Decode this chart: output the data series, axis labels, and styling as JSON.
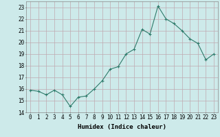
{
  "x": [
    0,
    1,
    2,
    3,
    4,
    5,
    6,
    7,
    8,
    9,
    10,
    11,
    12,
    13,
    14,
    15,
    16,
    17,
    18,
    19,
    20,
    21,
    22,
    23
  ],
  "y": [
    15.9,
    15.8,
    15.5,
    15.9,
    15.5,
    14.5,
    15.3,
    15.4,
    16.0,
    16.7,
    17.7,
    17.9,
    19.0,
    19.4,
    21.1,
    20.7,
    23.1,
    22.0,
    21.6,
    21.0,
    20.3,
    19.9,
    18.5,
    19.0
  ],
  "line_color": "#2d7a6a",
  "marker": "+",
  "marker_size": 3,
  "bg_color": "#cdeaea",
  "grid_color": "#c0a8b0",
  "xlabel": "Humidex (Indice chaleur)",
  "ylim": [
    14,
    23.5
  ],
  "yticks": [
    14,
    15,
    16,
    17,
    18,
    19,
    20,
    21,
    22,
    23
  ],
  "xticks": [
    0,
    1,
    2,
    3,
    4,
    5,
    6,
    7,
    8,
    9,
    10,
    11,
    12,
    13,
    14,
    15,
    16,
    17,
    18,
    19,
    20,
    21,
    22,
    23
  ],
  "xlabel_fontsize": 6.5,
  "tick_fontsize": 5.5
}
